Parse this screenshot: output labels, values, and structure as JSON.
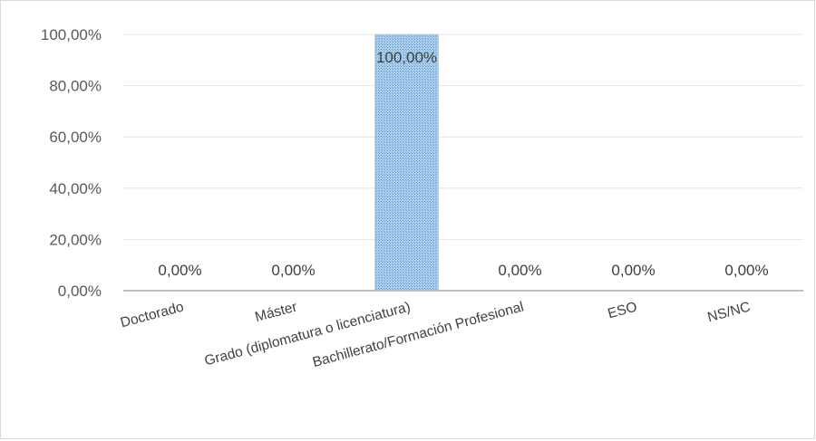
{
  "chart_data": {
    "type": "bar",
    "categories": [
      "Doctorado",
      "Máster",
      "Grado (diplomatura o licenciatura)",
      "Bachillerato/Formación Profesional",
      "ESO",
      "NS/NC"
    ],
    "values": [
      0,
      0,
      100,
      0,
      0,
      0
    ],
    "data_labels": [
      "0,00%",
      "0,00%",
      "100,00%",
      "0,00%",
      "0,00%",
      "0,00%"
    ],
    "y_ticks": [
      "0,00%",
      "20,00%",
      "40,00%",
      "60,00%",
      "80,00%",
      "100,00%"
    ],
    "ylim": [
      0,
      100
    ],
    "grid": true,
    "bar_color": "#9dc3e6",
    "bar_pattern_color": "#5b9bd5"
  }
}
